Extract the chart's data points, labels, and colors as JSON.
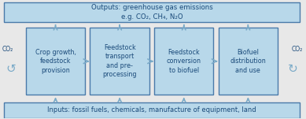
{
  "bg_color": "#e8e8e8",
  "box_fill": "#b8d8ea",
  "box_edge": "#4a7aaa",
  "banner_fill": "#b8d8ea",
  "banner_edge": "#4a7aaa",
  "box_text_color": "#1a4a7a",
  "arrow_color": "#7aaac8",
  "top_banner": "Outputs: greenhouse gas emissions\ne.g. CO₂, CH₄, N₂O",
  "bottom_banner": "Inputs: fossil fuels, chemicals, manufacture of equipment, land",
  "boxes": [
    "Crop growth,\nfeedstock\nprovision",
    "Feedstock\ntransport\nand pre-\nprocessing",
    "Feedstock\nconversion\nto biofuel",
    "Biofuel\ndistribution\nand use"
  ],
  "left_label": "CO₂",
  "right_label": "CO₂",
  "fig_width": 3.89,
  "fig_height": 1.51,
  "dpi": 100
}
